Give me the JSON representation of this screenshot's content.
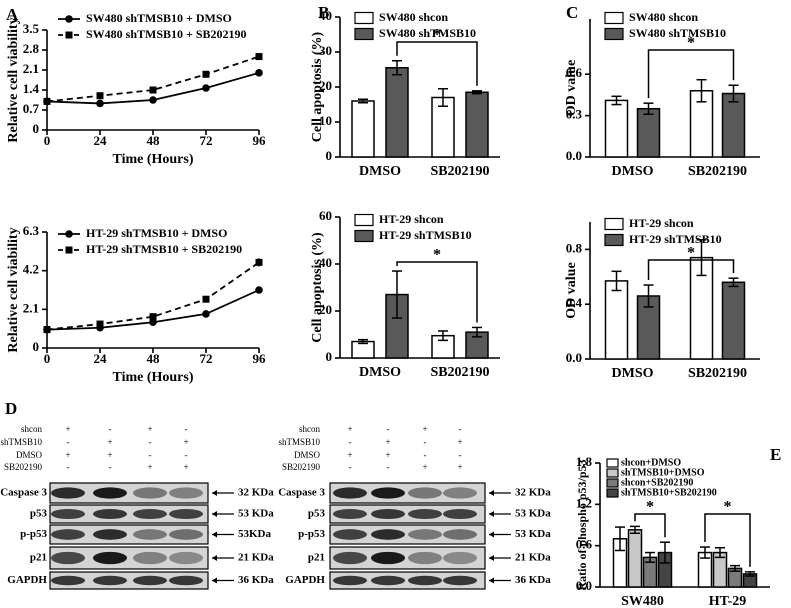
{
  "chart_data": [
    {
      "type": "line",
      "panel": "A",
      "x_label": "Time (Hours)",
      "y_label": "Relative cell viability",
      "x": [
        0,
        24,
        48,
        72,
        96
      ],
      "xlim": [
        0,
        96
      ],
      "xticks": [
        0,
        24,
        48,
        72,
        96
      ],
      "ylim": [
        0,
        3.5
      ],
      "yticks": [
        0,
        0.7,
        1.4,
        2.1,
        2.8,
        3.5
      ],
      "series": [
        {
          "name": "SW480 shTMSB10 + DMSO",
          "color": "#000000",
          "line_style": "solid",
          "marker": "circle",
          "values": [
            1.0,
            0.93,
            1.05,
            1.47,
            2.0
          ],
          "errors": [
            0,
            0.04,
            0.03,
            0.03,
            0.07
          ]
        },
        {
          "name": "SW480 shTMSB10 + SB202190",
          "color": "#000000",
          "line_style": "dashed",
          "marker": "square",
          "values": [
            1.0,
            1.2,
            1.4,
            1.95,
            2.57
          ],
          "errors": [
            0,
            0.03,
            0.03,
            0.04,
            0.08
          ]
        }
      ]
    },
    {
      "type": "line",
      "x_label": "Time (Hours)",
      "y_label": "Relative cell viability",
      "x": [
        0,
        24,
        48,
        72,
        96
      ],
      "xlim": [
        0,
        96
      ],
      "xticks": [
        0,
        24,
        48,
        72,
        96
      ],
      "ylim": [
        0,
        6.3
      ],
      "yticks": [
        0,
        2.1,
        4.2,
        6.3
      ],
      "series": [
        {
          "name": "HT-29 shTMSB10 + DMSO",
          "color": "#000000",
          "line_style": "solid",
          "marker": "circle",
          "values": [
            1.0,
            1.1,
            1.4,
            1.85,
            3.15
          ],
          "errors": [
            0,
            0.04,
            0.05,
            0.06,
            0.1
          ]
        },
        {
          "name": "HT-29 shTMSB10 + SB202190",
          "color": "#000000",
          "line_style": "dashed",
          "marker": "square",
          "values": [
            1.0,
            1.3,
            1.7,
            2.65,
            4.65
          ],
          "errors": [
            0,
            0.05,
            0.06,
            0.08,
            0.22
          ]
        }
      ]
    },
    {
      "type": "bar",
      "panel": "B",
      "y_label": "Cell apoptosis (%)",
      "categories": [
        "DMSO",
        "SB202190"
      ],
      "ylim": [
        0,
        40
      ],
      "yticks": [
        0,
        10,
        20,
        30,
        40
      ],
      "annotations": [
        "*"
      ],
      "series": [
        {
          "name": "SW480 shcon",
          "color": "#ffffff",
          "values": [
            16,
            17
          ],
          "errors": [
            0.5,
            2.5
          ]
        },
        {
          "name": "SW480 shTMSB10",
          "color": "#595959",
          "values": [
            25.5,
            18.5
          ],
          "errors": [
            2,
            0.4
          ]
        }
      ]
    },
    {
      "type": "bar",
      "y_label": "Cell apoptosis (%)",
      "categories": [
        "DMSO",
        "SB202190"
      ],
      "ylim": [
        0,
        60
      ],
      "yticks": [
        0,
        20,
        40,
        60
      ],
      "annotations": [
        "*"
      ],
      "series": [
        {
          "name": "HT-29 shcon",
          "color": "#ffffff",
          "values": [
            7,
            9.5
          ],
          "errors": [
            0.8,
            2
          ]
        },
        {
          "name": "HT-29 shTMSB10",
          "color": "#595959",
          "values": [
            27,
            11
          ],
          "errors": [
            10,
            2
          ]
        }
      ]
    },
    {
      "type": "bar",
      "panel": "C",
      "y_label": "OD value",
      "categories": [
        "DMSO",
        "SB202190"
      ],
      "ylim": [
        0,
        1.0
      ],
      "yticks": [
        {
          "value": 0,
          "label": "0.0"
        },
        0.3,
        0.6
      ],
      "annotations": [
        "*"
      ],
      "series": [
        {
          "name": "SW480 shcon",
          "color": "#ffffff",
          "values": [
            0.41,
            0.48
          ],
          "errors": [
            0.03,
            0.08
          ]
        },
        {
          "name": "SW480 shTMSB10",
          "color": "#595959",
          "values": [
            0.35,
            0.46
          ],
          "errors": [
            0.04,
            0.06
          ]
        }
      ]
    },
    {
      "type": "bar",
      "y_label": "OD value",
      "categories": [
        "DMSO",
        "SB202190"
      ],
      "ylim": [
        0,
        1.0
      ],
      "yticks": [
        {
          "value": 0,
          "label": "0.0"
        },
        0.4,
        0.8
      ],
      "annotations": [
        "*"
      ],
      "series": [
        {
          "name": "HT-29 shcon",
          "color": "#ffffff",
          "values": [
            0.57,
            0.74
          ],
          "errors": [
            0.07,
            0.13
          ]
        },
        {
          "name": "HT-29 shTMSB10",
          "color": "#595959",
          "values": [
            0.46,
            0.56
          ],
          "errors": [
            0.08,
            0.03
          ]
        }
      ]
    },
    {
      "type": "bar",
      "panel": "E",
      "y_label": "Ratio of phospho p53/p53",
      "categories": [
        "SW480",
        "HT-29"
      ],
      "ylim": [
        0,
        1.8
      ],
      "yticks": [
        {
          "value": 0,
          "label": "0.0"
        },
        0.6,
        1.2,
        1.8
      ],
      "annotations": [
        "*",
        "*"
      ],
      "series": [
        {
          "name": "shcon+DMSO",
          "color": "#ffffff",
          "values": [
            0.7,
            0.5
          ],
          "errors": [
            0.17,
            0.08
          ]
        },
        {
          "name": "shTMSB10+DMSO",
          "color": "#c8c8c8",
          "values": [
            0.83,
            0.5
          ],
          "errors": [
            0.05,
            0.07
          ]
        },
        {
          "name": "shcon+SB202190",
          "color": "#7a7a7a",
          "values": [
            0.43,
            0.27
          ],
          "errors": [
            0.07,
            0.04
          ]
        },
        {
          "name": "shTMSB10+SB202190",
          "color": "#444444",
          "values": [
            0.5,
            0.19
          ],
          "errors": [
            0.15,
            0.03
          ]
        }
      ]
    }
  ],
  "blots": {
    "panel": "D",
    "panels": [
      {
        "treatments": [
          {
            "label": "shcon",
            "signs": [
              "+",
              "-",
              "+",
              "-"
            ]
          },
          {
            "label": "shTMSB10",
            "signs": [
              "-",
              "+",
              "-",
              "+"
            ]
          },
          {
            "label": "DMSO",
            "signs": [
              "+",
              "+",
              "-",
              "-"
            ]
          },
          {
            "label": "SB202190",
            "signs": [
              "-",
              "-",
              "+",
              "+"
            ]
          }
        ],
        "bands": [
          {
            "label": "Caspase 3",
            "size": "32 KDa"
          },
          {
            "label": "p53",
            "size": "53 KDa"
          },
          {
            "label": "p-p53",
            "size": "53KDa"
          },
          {
            "label": "p21",
            "size": "21 KDa"
          },
          {
            "label": "GAPDH",
            "size": "36 KDa"
          }
        ]
      },
      {
        "treatments": [
          {
            "label": "shcon",
            "signs": [
              "+",
              "-",
              "+",
              "-"
            ]
          },
          {
            "label": "shTMSB10",
            "signs": [
              "-",
              "+",
              "-",
              "+"
            ]
          },
          {
            "label": "DMSO",
            "signs": [
              "+",
              "+",
              "-",
              "-"
            ]
          },
          {
            "label": "SB202190",
            "signs": [
              "-",
              "-",
              "+",
              "+"
            ]
          }
        ],
        "bands": [
          {
            "label": "Caspase 3",
            "size": "32 KDa"
          },
          {
            "label": "p53",
            "size": "53 KDa"
          },
          {
            "label": "p-p53",
            "size": "53 KDa"
          },
          {
            "label": "p21",
            "size": "21 KDa"
          },
          {
            "label": "GAPDH",
            "size": "36 KDa"
          }
        ]
      }
    ]
  }
}
